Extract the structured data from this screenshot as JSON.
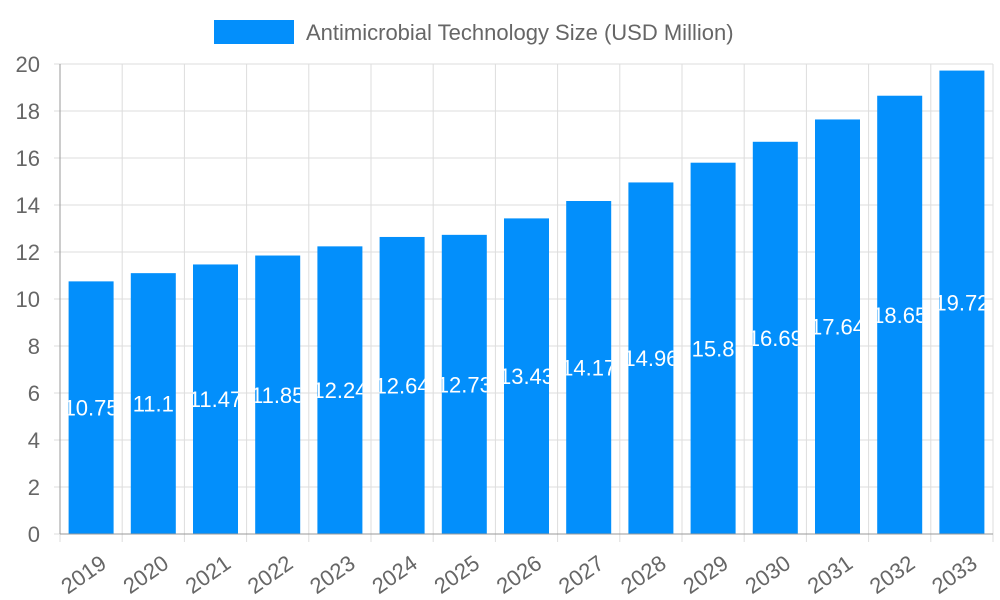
{
  "chart_data": {
    "type": "bar",
    "legend": {
      "label": "Antimicrobial Technology Size (USD Million)",
      "placement": "top"
    },
    "categories": [
      "2019",
      "2020",
      "2021",
      "2022",
      "2023",
      "2024",
      "2025",
      "2026",
      "2027",
      "2028",
      "2029",
      "2030",
      "2031",
      "2032",
      "2033"
    ],
    "series": [
      {
        "name": "Antimicrobial Technology Size (USD Million)",
        "values": [
          10.75,
          11.1,
          11.47,
          11.85,
          12.24,
          12.64,
          12.73,
          13.43,
          14.17,
          14.96,
          15.8,
          16.69,
          17.64,
          18.65,
          19.72
        ]
      }
    ],
    "ylim": [
      0,
      20
    ],
    "yticks": [
      0,
      2,
      4,
      6,
      8,
      10,
      12,
      14,
      16,
      18,
      20
    ],
    "grid": true,
    "colors": {
      "bar": "#038ffb",
      "label": "#ffffff",
      "grid": "#dddddd",
      "text": "#666666"
    }
  }
}
